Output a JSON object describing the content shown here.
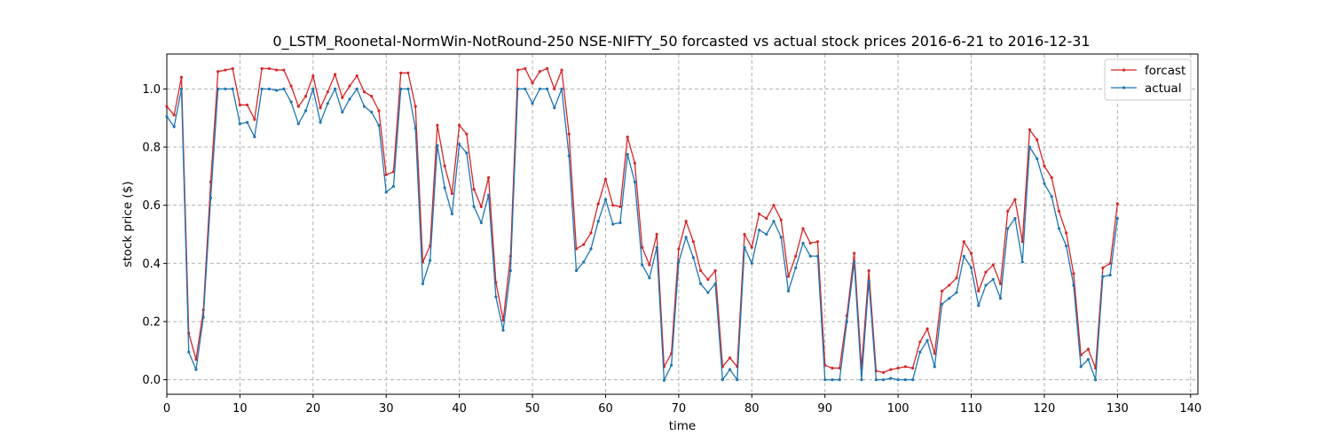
{
  "chart_data": {
    "type": "line",
    "title": "0_LSTM_Roonetal-NormWin-NotRound-250 NSE-NIFTY_50 forcasted vs actual stock prices 2016-6-21 to 2016-12-31",
    "xlabel": "time",
    "ylabel": "stock price ($)",
    "xlim": [
      0,
      141
    ],
    "ylim": [
      -0.05,
      1.12
    ],
    "xticks": [
      0,
      10,
      20,
      30,
      40,
      50,
      60,
      70,
      80,
      90,
      100,
      110,
      120,
      130,
      140
    ],
    "yticks": [
      0.0,
      0.2,
      0.4,
      0.6,
      0.8,
      1.0
    ],
    "xtick_labels": [
      "0",
      "10",
      "20",
      "30",
      "40",
      "50",
      "60",
      "70",
      "80",
      "90",
      "100",
      "110",
      "120",
      "130",
      "140"
    ],
    "ytick_labels": [
      "0.0",
      "0.2",
      "0.4",
      "0.6",
      "0.8",
      "1.0"
    ],
    "grid": true,
    "legend_position": "top-right",
    "x": [
      0,
      1,
      2,
      3,
      4,
      5,
      6,
      7,
      8,
      9,
      10,
      11,
      12,
      13,
      14,
      15,
      16,
      17,
      18,
      19,
      20,
      21,
      22,
      23,
      24,
      25,
      26,
      27,
      28,
      29,
      30,
      31,
      32,
      33,
      34,
      35,
      36,
      37,
      38,
      39,
      40,
      41,
      42,
      43,
      44,
      45,
      46,
      47,
      48,
      49,
      50,
      51,
      52,
      53,
      54,
      55,
      56,
      57,
      58,
      59,
      60,
      61,
      62,
      63,
      64,
      65,
      66,
      67,
      68,
      69,
      70,
      71,
      72,
      73,
      74,
      75,
      76,
      77,
      78,
      79,
      80,
      81,
      82,
      83,
      84,
      85,
      86,
      87,
      88,
      89,
      90,
      91,
      92,
      93,
      94,
      95,
      96,
      97,
      98,
      99,
      100,
      101,
      102,
      103,
      104,
      105,
      106,
      107,
      108,
      109,
      110,
      111,
      112,
      113,
      114,
      115,
      116,
      117,
      118,
      119,
      120,
      121,
      122,
      123,
      124,
      125,
      126,
      127,
      128,
      129,
      130
    ],
    "series": [
      {
        "name": "forcast",
        "color": "#d62728",
        "values": [
          0.94,
          0.91,
          1.04,
          0.16,
          0.07,
          0.24,
          0.68,
          1.06,
          1.065,
          1.07,
          0.945,
          0.945,
          0.895,
          1.07,
          1.07,
          1.065,
          1.065,
          1.01,
          0.94,
          0.975,
          1.045,
          0.935,
          0.99,
          1.05,
          0.97,
          1.01,
          1.045,
          0.99,
          0.975,
          0.925,
          0.705,
          0.715,
          1.055,
          1.055,
          0.94,
          0.405,
          0.46,
          0.875,
          0.735,
          0.64,
          0.875,
          0.845,
          0.655,
          0.595,
          0.695,
          0.335,
          0.205,
          0.425,
          1.065,
          1.07,
          1.02,
          1.06,
          1.07,
          1.0,
          1.065,
          0.845,
          0.45,
          0.465,
          0.505,
          0.605,
          0.69,
          0.6,
          0.595,
          0.835,
          0.745,
          0.455,
          0.395,
          0.5,
          0.045,
          0.09,
          0.45,
          0.545,
          0.475,
          0.375,
          0.345,
          0.375,
          0.045,
          0.075,
          0.045,
          0.5,
          0.455,
          0.57,
          0.555,
          0.6,
          0.55,
          0.355,
          0.425,
          0.52,
          0.47,
          0.475,
          0.05,
          0.04,
          0.04,
          0.22,
          0.435,
          0.04,
          0.375,
          0.03,
          0.025,
          0.035,
          0.04,
          0.045,
          0.04,
          0.13,
          0.175,
          0.09,
          0.305,
          0.325,
          0.35,
          0.475,
          0.435,
          0.305,
          0.37,
          0.395,
          0.33,
          0.58,
          0.62,
          0.475,
          0.86,
          0.825,
          0.735,
          0.695,
          0.58,
          0.505,
          0.365,
          0.085,
          0.105,
          0.04,
          0.385,
          0.4,
          0.605
        ]
      },
      {
        "name": "actual",
        "color": "#1f77b4",
        "values": [
          0.905,
          0.87,
          1.0,
          0.095,
          0.035,
          0.215,
          0.625,
          1.0,
          1.0,
          1.0,
          0.88,
          0.885,
          0.835,
          1.0,
          1.0,
          0.995,
          1.0,
          0.955,
          0.88,
          0.925,
          1.0,
          0.885,
          0.95,
          1.0,
          0.92,
          0.965,
          1.0,
          0.94,
          0.92,
          0.875,
          0.645,
          0.665,
          1.0,
          1.0,
          0.865,
          0.33,
          0.41,
          0.805,
          0.66,
          0.57,
          0.81,
          0.78,
          0.595,
          0.54,
          0.635,
          0.285,
          0.17,
          0.375,
          1.0,
          1.0,
          0.95,
          1.0,
          1.0,
          0.935,
          1.0,
          0.77,
          0.375,
          0.405,
          0.45,
          0.545,
          0.62,
          0.535,
          0.54,
          0.775,
          0.68,
          0.395,
          0.35,
          0.455,
          -0.002,
          0.05,
          0.405,
          0.49,
          0.42,
          0.33,
          0.3,
          0.33,
          0.0,
          0.035,
          0.0,
          0.455,
          0.4,
          0.515,
          0.5,
          0.545,
          0.49,
          0.305,
          0.385,
          0.47,
          0.425,
          0.425,
          0.0,
          0.0,
          0.0,
          0.2,
          0.405,
          0.0,
          0.34,
          0.0,
          0.0,
          0.005,
          0.0,
          0.0,
          0.0,
          0.095,
          0.135,
          0.045,
          0.26,
          0.28,
          0.3,
          0.425,
          0.385,
          0.255,
          0.325,
          0.345,
          0.28,
          0.52,
          0.555,
          0.405,
          0.8,
          0.76,
          0.675,
          0.63,
          0.52,
          0.46,
          0.325,
          0.045,
          0.07,
          0.0,
          0.355,
          0.36,
          0.555
        ]
      }
    ]
  }
}
